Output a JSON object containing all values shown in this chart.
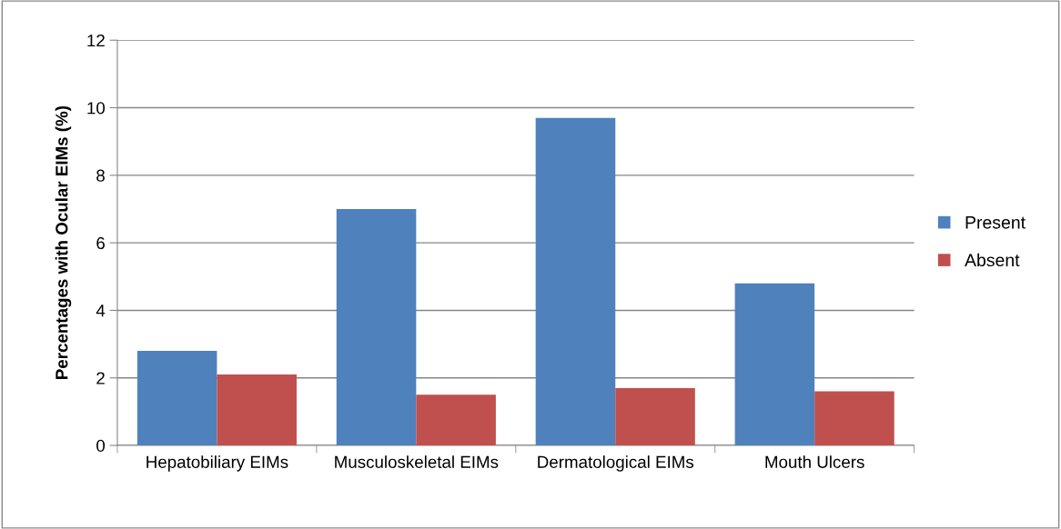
{
  "chart_data": {
    "type": "bar",
    "ylabel": "Percentages with Ocular EIMs (%)",
    "categories": [
      "Hepatobiliary EIMs",
      "Musculoskeletal EIMs",
      "Dermatological EIMs",
      "Mouth Ulcers"
    ],
    "series": [
      {
        "name": "Present",
        "color": "#4f81bd",
        "values": [
          2.8,
          7.0,
          9.7,
          4.8
        ]
      },
      {
        "name": "Absent",
        "color": "#c0504d",
        "values": [
          2.1,
          1.5,
          1.7,
          1.6
        ]
      }
    ],
    "ylim": [
      0,
      12
    ],
    "yticks": [
      0,
      2,
      4,
      6,
      8,
      10,
      12
    ],
    "grid": "y",
    "legend": "right"
  }
}
